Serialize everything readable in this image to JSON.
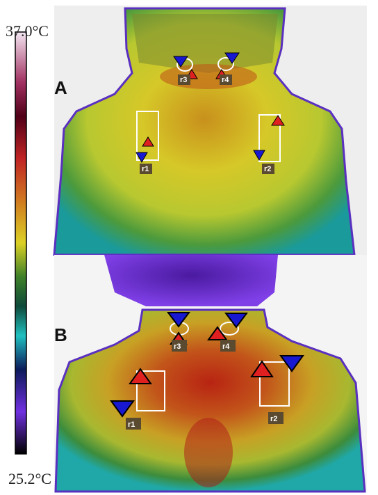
{
  "colorbar": {
    "max_label": "37.0°C",
    "min_label": "25.2°C"
  },
  "panels": [
    {
      "label": "A",
      "regions": [
        "r1",
        "r2",
        "r3",
        "r4"
      ]
    },
    {
      "label": "B",
      "regions": [
        "r1",
        "r2",
        "r3",
        "r4"
      ]
    }
  ]
}
